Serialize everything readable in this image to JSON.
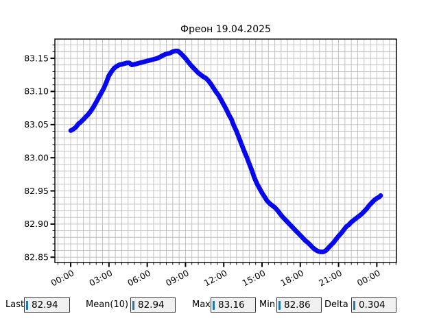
{
  "title": "Фреон 19.04.2025",
  "chart_data": {
    "type": "line",
    "title": "Фреон 19.04.2025",
    "xlabel": "",
    "ylabel": "",
    "grid": true,
    "legend": "none",
    "xlim_hours": [
      -1.24,
      25.54
    ],
    "ylim": [
      82.842,
      83.179
    ],
    "x_tick_hours": [
      0,
      3,
      6,
      9,
      12,
      15,
      18,
      21,
      24
    ],
    "x_tick_labels": [
      "00:00",
      "03:00",
      "06:00",
      "09:00",
      "12:00",
      "15:00",
      "18:00",
      "21:00",
      "00:00"
    ],
    "x_minor_step_hours": 0.5,
    "y_major_step": 0.05,
    "y_minor_step": 0.01,
    "y_tick_values": [
      82.85,
      82.9,
      82.95,
      83.0,
      83.05,
      83.1,
      83.15
    ],
    "series": [
      {
        "name": "Фреон",
        "color": "#0707ee",
        "points": [
          [
            0.0,
            83.041
          ],
          [
            0.2,
            83.043
          ],
          [
            0.4,
            83.046
          ],
          [
            0.6,
            83.051
          ],
          [
            0.8,
            83.054
          ],
          [
            1.0,
            83.058
          ],
          [
            1.2,
            83.062
          ],
          [
            1.4,
            83.066
          ],
          [
            1.6,
            83.071
          ],
          [
            1.8,
            83.077
          ],
          [
            2.0,
            83.084
          ],
          [
            2.2,
            83.091
          ],
          [
            2.4,
            83.098
          ],
          [
            2.6,
            83.105
          ],
          [
            2.8,
            83.114
          ],
          [
            3.0,
            83.124
          ],
          [
            3.2,
            83.13
          ],
          [
            3.4,
            83.135
          ],
          [
            3.6,
            83.138
          ],
          [
            3.8,
            83.14
          ],
          [
            4.0,
            83.141
          ],
          [
            4.2,
            83.142
          ],
          [
            4.4,
            83.143
          ],
          [
            4.6,
            83.143
          ],
          [
            4.8,
            83.14
          ],
          [
            5.0,
            83.141
          ],
          [
            5.2,
            83.142
          ],
          [
            5.4,
            83.143
          ],
          [
            5.6,
            83.144
          ],
          [
            5.8,
            83.145
          ],
          [
            6.0,
            83.146
          ],
          [
            6.2,
            83.147
          ],
          [
            6.4,
            83.148
          ],
          [
            6.6,
            83.149
          ],
          [
            6.8,
            83.15
          ],
          [
            7.0,
            83.152
          ],
          [
            7.2,
            83.154
          ],
          [
            7.4,
            83.156
          ],
          [
            7.6,
            83.157
          ],
          [
            7.8,
            83.158
          ],
          [
            8.0,
            83.16
          ],
          [
            8.2,
            83.161
          ],
          [
            8.4,
            83.161
          ],
          [
            8.6,
            83.158
          ],
          [
            8.8,
            83.154
          ],
          [
            9.0,
            83.15
          ],
          [
            9.2,
            83.145
          ],
          [
            9.4,
            83.14
          ],
          [
            9.6,
            83.136
          ],
          [
            9.8,
            83.132
          ],
          [
            10.0,
            83.128
          ],
          [
            10.2,
            83.125
          ],
          [
            10.4,
            83.122
          ],
          [
            10.6,
            83.12
          ],
          [
            10.8,
            83.116
          ],
          [
            11.0,
            83.111
          ],
          [
            11.2,
            83.105
          ],
          [
            11.4,
            83.099
          ],
          [
            11.6,
            83.094
          ],
          [
            11.8,
            83.087
          ],
          [
            12.0,
            83.08
          ],
          [
            12.2,
            83.073
          ],
          [
            12.4,
            83.065
          ],
          [
            12.6,
            83.058
          ],
          [
            12.8,
            83.048
          ],
          [
            13.0,
            83.04
          ],
          [
            13.2,
            83.03
          ],
          [
            13.4,
            83.02
          ],
          [
            13.6,
            83.01
          ],
          [
            13.8,
            83.001
          ],
          [
            14.0,
            82.991
          ],
          [
            14.2,
            82.981
          ],
          [
            14.4,
            82.97
          ],
          [
            14.6,
            82.961
          ],
          [
            14.8,
            82.954
          ],
          [
            15.0,
            82.947
          ],
          [
            15.2,
            82.941
          ],
          [
            15.4,
            82.935
          ],
          [
            15.6,
            82.931
          ],
          [
            15.8,
            82.928
          ],
          [
            16.0,
            82.925
          ],
          [
            16.2,
            82.921
          ],
          [
            16.4,
            82.916
          ],
          [
            16.6,
            82.911
          ],
          [
            16.8,
            82.907
          ],
          [
            17.0,
            82.903
          ],
          [
            17.2,
            82.899
          ],
          [
            17.4,
            82.895
          ],
          [
            17.6,
            82.891
          ],
          [
            17.8,
            82.887
          ],
          [
            18.0,
            82.883
          ],
          [
            18.2,
            82.879
          ],
          [
            18.4,
            82.875
          ],
          [
            18.6,
            82.872
          ],
          [
            18.8,
            82.868
          ],
          [
            19.0,
            82.864
          ],
          [
            19.2,
            82.861
          ],
          [
            19.4,
            82.859
          ],
          [
            19.6,
            82.858
          ],
          [
            19.8,
            82.858
          ],
          [
            20.0,
            82.86
          ],
          [
            20.2,
            82.864
          ],
          [
            20.4,
            82.868
          ],
          [
            20.6,
            82.872
          ],
          [
            20.8,
            82.877
          ],
          [
            21.0,
            82.882
          ],
          [
            21.2,
            82.886
          ],
          [
            21.4,
            82.891
          ],
          [
            21.6,
            82.896
          ],
          [
            21.8,
            82.899
          ],
          [
            22.0,
            82.903
          ],
          [
            22.2,
            82.906
          ],
          [
            22.4,
            82.909
          ],
          [
            22.6,
            82.912
          ],
          [
            22.8,
            82.915
          ],
          [
            23.0,
            82.919
          ],
          [
            23.2,
            82.923
          ],
          [
            23.4,
            82.928
          ],
          [
            23.6,
            82.932
          ],
          [
            23.8,
            82.936
          ],
          [
            24.0,
            82.939
          ],
          [
            24.2,
            82.941
          ],
          [
            24.3,
            82.943
          ]
        ]
      }
    ]
  },
  "stats": [
    {
      "label": "Last",
      "value": "82.94"
    },
    {
      "label": "Mean(10)",
      "value": "82.94"
    },
    {
      "label": "Max",
      "value": "83.16"
    },
    {
      "label": "Min",
      "value": "82.86"
    },
    {
      "label": "Delta",
      "value": "0.304"
    }
  ],
  "colors": {
    "line": "#0707ee",
    "grid": "#bdbdbd",
    "axis": "#000000",
    "caret": "#1f77b4",
    "field_bg": "#f0f0f0",
    "field_border": "#333333"
  }
}
